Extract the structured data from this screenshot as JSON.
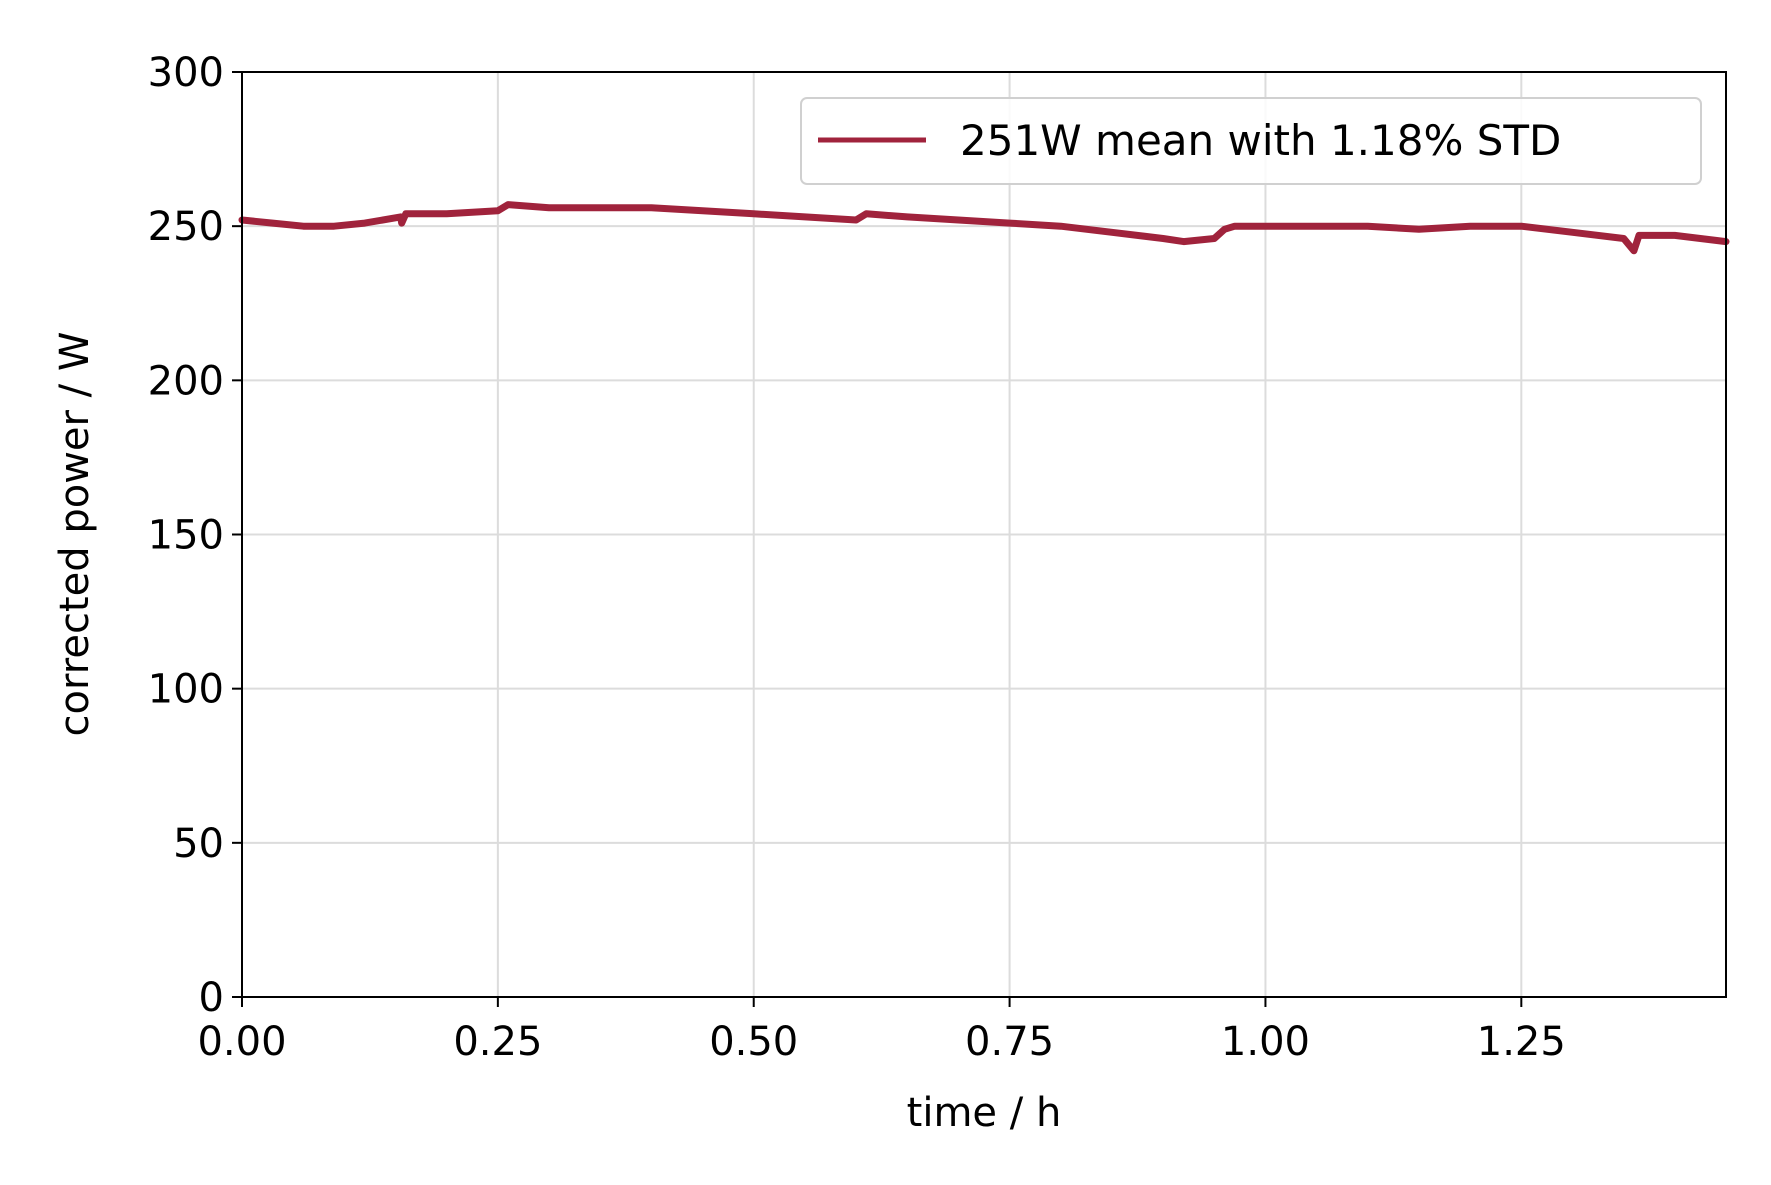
{
  "chart_data": {
    "type": "line",
    "title": "",
    "xlabel": "time / h",
    "ylabel": "corrected power / W",
    "xlim": [
      0,
      1.45
    ],
    "ylim": [
      0,
      300
    ],
    "xticks": [
      0,
      0.25,
      0.5,
      0.75,
      1.0,
      1.25
    ],
    "xtick_labels": [
      "0.00",
      "0.25",
      "0.50",
      "0.75",
      "1.00",
      "1.25"
    ],
    "yticks": [
      0,
      50,
      100,
      150,
      200,
      250,
      300
    ],
    "ytick_labels": [
      "0",
      "50",
      "100",
      "150",
      "200",
      "250",
      "300"
    ],
    "grid": true,
    "legend_position": "top-right",
    "series": [
      {
        "name": "251W mean with 1.18% STD",
        "color": "#a0233c",
        "points": [
          [
            0.0,
            252
          ],
          [
            0.03,
            251
          ],
          [
            0.06,
            250
          ],
          [
            0.09,
            250
          ],
          [
            0.12,
            251
          ],
          [
            0.155,
            253
          ],
          [
            0.156,
            251
          ],
          [
            0.16,
            254
          ],
          [
            0.2,
            254
          ],
          [
            0.25,
            255
          ],
          [
            0.26,
            257
          ],
          [
            0.3,
            256
          ],
          [
            0.35,
            256
          ],
          [
            0.4,
            256
          ],
          [
            0.45,
            255
          ],
          [
            0.5,
            254
          ],
          [
            0.55,
            253
          ],
          [
            0.6,
            252
          ],
          [
            0.61,
            254
          ],
          [
            0.65,
            253
          ],
          [
            0.7,
            252
          ],
          [
            0.75,
            251
          ],
          [
            0.8,
            250
          ],
          [
            0.85,
            248
          ],
          [
            0.9,
            246
          ],
          [
            0.92,
            245
          ],
          [
            0.95,
            246
          ],
          [
            0.96,
            249
          ],
          [
            0.97,
            250
          ],
          [
            1.0,
            250
          ],
          [
            1.05,
            250
          ],
          [
            1.1,
            250
          ],
          [
            1.15,
            249
          ],
          [
            1.2,
            250
          ],
          [
            1.25,
            250
          ],
          [
            1.3,
            248
          ],
          [
            1.35,
            246
          ],
          [
            1.36,
            242
          ],
          [
            1.365,
            247
          ],
          [
            1.4,
            247
          ],
          [
            1.45,
            245
          ]
        ]
      }
    ]
  }
}
